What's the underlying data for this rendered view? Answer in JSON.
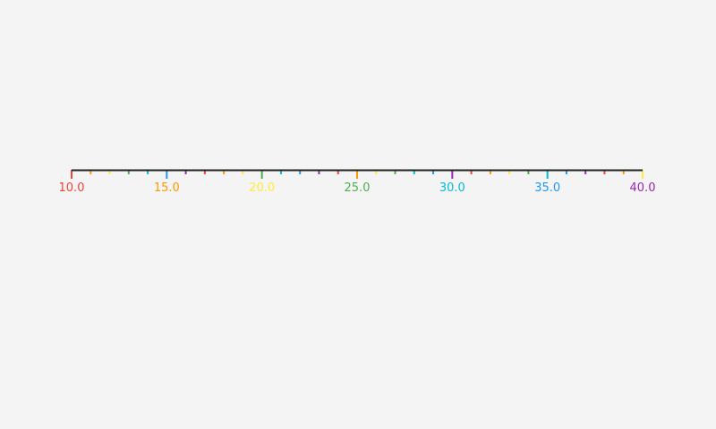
{
  "chart_data": {
    "type": "axis",
    "title": "",
    "xlabel": "",
    "xlim": [
      10,
      40
    ],
    "major_step": 5,
    "minor_step": 1,
    "tick_labels": [
      "10.0",
      "15.0",
      "20.0",
      "25.0",
      "30.0",
      "35.0",
      "40.0"
    ],
    "grid": false,
    "axis_color": "#222222",
    "color_cycle": [
      "#f44336",
      "#ff9800",
      "#ffeb3b",
      "#4caf50",
      "#00bcd4",
      "#2196f3",
      "#9c27b0"
    ]
  }
}
